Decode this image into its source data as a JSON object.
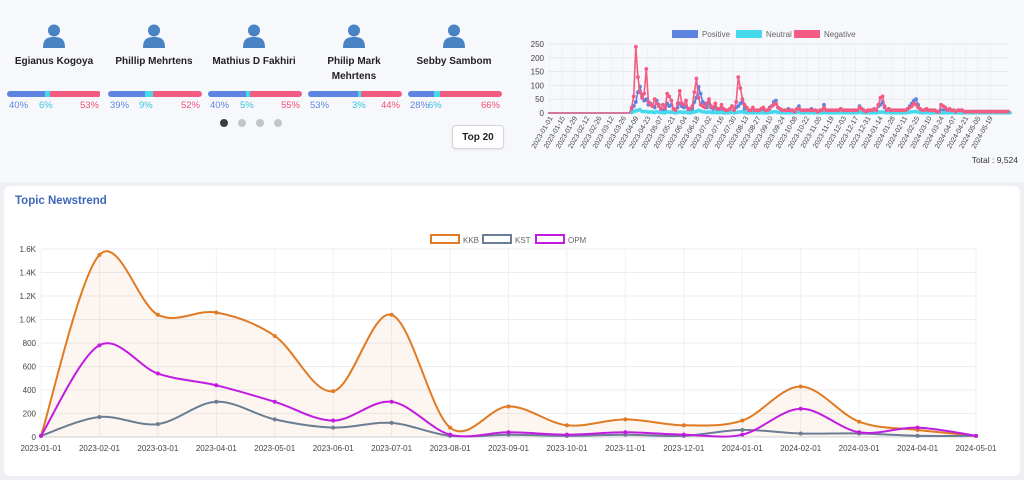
{
  "people": [
    {
      "name": "Egianus Kogoya",
      "pos": 40,
      "neu": 6,
      "neg": 53,
      "pos_label": "40%",
      "neu_label": "6%",
      "neg_label": "53%"
    },
    {
      "name": "Phillip Mehrtens",
      "pos": 39,
      "neu": 9,
      "neg": 52,
      "pos_label": "39%",
      "neu_label": "9%",
      "neg_label": "52%"
    },
    {
      "name": "Mathius D Fakhiri",
      "pos": 40,
      "neu": 5,
      "neg": 55,
      "pos_label": "40%",
      "neu_label": "5%",
      "neg_label": "55%"
    },
    {
      "name": "Philip Mark Mehrtens",
      "pos": 53,
      "neu": 3,
      "neg": 44,
      "pos_label": "53%",
      "neu_label": "3%",
      "neg_label": "44%"
    },
    {
      "name": "Sebby Sambom",
      "pos": 28,
      "neu": 6,
      "neg": 66,
      "pos_label": "28%",
      "neu_label": "6%",
      "neg_label": "66%"
    }
  ],
  "carousel": {
    "pages": 4,
    "active": 0
  },
  "top_button": "Top 20",
  "total_label": "Total : 9,524",
  "topic_title": "Topic Newstrend",
  "colors": {
    "positive": "#5d84e1",
    "neutral": "#46d9ee",
    "negative": "#f45b82",
    "kkb": "#e07b24",
    "kst": "#6b7d95",
    "opm": "#c21be0",
    "title": "#3f68b8"
  },
  "chart_data": [
    {
      "type": "line",
      "legend_position": "top",
      "grid": true,
      "ylim": [
        0,
        250
      ],
      "yticks": [
        0,
        50,
        100,
        150,
        200,
        250
      ],
      "x_tick_labels": [
        "2023-01-01",
        "2023-01-15",
        "2023-01-29",
        "2023-02-12",
        "2023-02-26",
        "2023-03-12",
        "2023-03-26",
        "2023-04-09",
        "2023-04-23",
        "2023-05-07",
        "2023-05-21",
        "2023-06-04",
        "2023-06-18",
        "2023-07-02",
        "2023-07-16",
        "2023-07-30",
        "2023-08-13",
        "2023-08-27",
        "2023-09-10",
        "2023-09-24",
        "2023-10-08",
        "2023-10-22",
        "2023-11-05",
        "2023-11-19",
        "2023-12-03",
        "2023-12-17",
        "2023-12-31",
        "2024-01-14",
        "2024-01-28",
        "2024-02-11",
        "2024-02-25",
        "2024-03-10",
        "2024-03-24",
        "2024-04-07",
        "2024-04-21",
        "2024-05-05",
        "2024-05-19"
      ],
      "series": [
        {
          "name": "Positive",
          "values": [
            0,
            0,
            0,
            0,
            0,
            0,
            0,
            0,
            0,
            0,
            0,
            0,
            0,
            0,
            0,
            0,
            0,
            0,
            0,
            0,
            0,
            0,
            0,
            0,
            0,
            0,
            0,
            0,
            0,
            0,
            0,
            0,
            0,
            0,
            0,
            0,
            0,
            0,
            0,
            0,
            10,
            25,
            40,
            75,
            95,
            60,
            45,
            50,
            30,
            35,
            25,
            20,
            45,
            30,
            15,
            10,
            10,
            35,
            25,
            30,
            15,
            10,
            20,
            35,
            25,
            20,
            25,
            10,
            10,
            15,
            40,
            55,
            95,
            70,
            40,
            35,
            20,
            35,
            20,
            15,
            20,
            10,
            15,
            15,
            10,
            10,
            10,
            15,
            25,
            10,
            20,
            25,
            35,
            40,
            15,
            20,
            10,
            10,
            10,
            5,
            10,
            10,
            15,
            10,
            10,
            10,
            20,
            25,
            40,
            45,
            20,
            15,
            10,
            10,
            10,
            15,
            10,
            10,
            5,
            15,
            25,
            10,
            10,
            10,
            10,
            10,
            15,
            10,
            10,
            5,
            10,
            10,
            30,
            10,
            10,
            10,
            10,
            10,
            10,
            10,
            15,
            10,
            10,
            10,
            10,
            10,
            10,
            10,
            10,
            25,
            15,
            10,
            5,
            10,
            10,
            10,
            15,
            10,
            25,
            30,
            40,
            20,
            10,
            15,
            10,
            10,
            10,
            10,
            10,
            10,
            10,
            10,
            15,
            25,
            35,
            45,
            50,
            30,
            15,
            10,
            10,
            15,
            10,
            10,
            10,
            10,
            5,
            5,
            10,
            10,
            10,
            10,
            15,
            10,
            10,
            5,
            10,
            10,
            10,
            5,
            5,
            5,
            5,
            5,
            5,
            5,
            5,
            5,
            5,
            5,
            5,
            5,
            5,
            5,
            5,
            5,
            5,
            5,
            5,
            5,
            5
          ]
        },
        {
          "name": "Neutral",
          "values": [
            0,
            0,
            0,
            0,
            0,
            0,
            0,
            0,
            0,
            0,
            0,
            0,
            0,
            0,
            0,
            0,
            0,
            0,
            0,
            0,
            0,
            0,
            0,
            0,
            0,
            0,
            0,
            0,
            0,
            0,
            0,
            0,
            0,
            0,
            0,
            0,
            0,
            0,
            0,
            0,
            2,
            5,
            8,
            10,
            12,
            6,
            5,
            6,
            3,
            4,
            3,
            2,
            5,
            3,
            2,
            1,
            1,
            4,
            3,
            3,
            2,
            1,
            2,
            4,
            3,
            2,
            3,
            1,
            1,
            2,
            4,
            6,
            10,
            7,
            4,
            4,
            2,
            4,
            2,
            2,
            2,
            1,
            2,
            2,
            1,
            1,
            1,
            2,
            3,
            1,
            2,
            3,
            4,
            4,
            2,
            2,
            1,
            1,
            1,
            1,
            1,
            1,
            2,
            1,
            1,
            1,
            2,
            3,
            4,
            5,
            2,
            2,
            1,
            1,
            1,
            2,
            1,
            1,
            1,
            2,
            3,
            1,
            1,
            1,
            1,
            1,
            2,
            1,
            1,
            1,
            1,
            1,
            3,
            1,
            1,
            1,
            1,
            1,
            1,
            1,
            2,
            1,
            1,
            1,
            1,
            1,
            1,
            1,
            1,
            3,
            2,
            1,
            1,
            1,
            1,
            1,
            2,
            1,
            3,
            3,
            4,
            2,
            1,
            2,
            1,
            1,
            1,
            1,
            1,
            1,
            1,
            1,
            2,
            3,
            4,
            5,
            5,
            3,
            2,
            1,
            1,
            2,
            1,
            1,
            1,
            1,
            1,
            1,
            1,
            1,
            1,
            1,
            2,
            1,
            1,
            1,
            1,
            1,
            1,
            1,
            1,
            1,
            1,
            1,
            1,
            1,
            1,
            1,
            1,
            1,
            1,
            1,
            1,
            1,
            1,
            1,
            1,
            1,
            1,
            1,
            1,
            1
          ]
        },
        {
          "name": "Negative",
          "values": [
            0,
            0,
            0,
            0,
            0,
            0,
            0,
            0,
            0,
            0,
            0,
            0,
            0,
            0,
            0,
            0,
            0,
            0,
            0,
            0,
            0,
            0,
            0,
            0,
            0,
            0,
            0,
            0,
            0,
            0,
            0,
            0,
            0,
            0,
            0,
            0,
            0,
            0,
            0,
            0,
            20,
            60,
            240,
            130,
            75,
            55,
            70,
            160,
            40,
            30,
            25,
            50,
            35,
            25,
            15,
            30,
            20,
            70,
            60,
            45,
            15,
            10,
            35,
            80,
            35,
            30,
            45,
            15,
            15,
            25,
            75,
            125,
            55,
            30,
            25,
            20,
            35,
            50,
            25,
            20,
            35,
            15,
            15,
            30,
            15,
            10,
            10,
            15,
            25,
            10,
            40,
            130,
            90,
            50,
            30,
            20,
            10,
            10,
            20,
            10,
            10,
            10,
            15,
            20,
            10,
            10,
            15,
            25,
            30,
            35,
            20,
            15,
            10,
            10,
            10,
            10,
            10,
            10,
            5,
            15,
            15,
            10,
            10,
            10,
            10,
            10,
            10,
            10,
            10,
            5,
            10,
            10,
            20,
            10,
            10,
            10,
            10,
            10,
            10,
            10,
            15,
            10,
            10,
            10,
            10,
            10,
            10,
            10,
            10,
            20,
            15,
            10,
            5,
            10,
            10,
            10,
            15,
            10,
            30,
            55,
            60,
            25,
            10,
            15,
            10,
            10,
            10,
            10,
            10,
            10,
            10,
            10,
            15,
            20,
            25,
            35,
            30,
            20,
            15,
            10,
            10,
            15,
            10,
            10,
            10,
            10,
            5,
            5,
            30,
            25,
            20,
            10,
            15,
            10,
            10,
            5,
            10,
            10,
            10,
            5,
            5,
            5,
            5,
            5,
            5,
            5,
            5,
            5,
            5,
            5,
            5,
            5,
            5,
            5,
            5,
            5,
            5,
            5,
            5,
            5,
            5
          ]
        }
      ]
    },
    {
      "type": "area",
      "legend_position": "top",
      "grid": true,
      "ylim": [
        0,
        1600
      ],
      "ytick_labels": [
        "0",
        "200",
        "400",
        "600",
        "800",
        "1.0K",
        "1.2K",
        "1.4K",
        "1.6K"
      ],
      "x": [
        "2023-01-01",
        "2023-02-01",
        "2023-03-01",
        "2023-04-01",
        "2023-05-01",
        "2023-06-01",
        "2023-07-01",
        "2023-08-01",
        "2023-09-01",
        "2023-10-01",
        "2023-11-01",
        "2023-12-01",
        "2024-01-01",
        "2024-02-01",
        "2024-03-01",
        "2024-04-01",
        "2024-05-01"
      ],
      "series": [
        {
          "name": "KKB",
          "values": [
            10,
            1550,
            1040,
            1060,
            860,
            390,
            1040,
            80,
            260,
            100,
            150,
            100,
            140,
            430,
            130,
            60,
            10
          ]
        },
        {
          "name": "KST",
          "values": [
            10,
            170,
            110,
            300,
            150,
            80,
            120,
            10,
            20,
            10,
            20,
            10,
            60,
            30,
            30,
            10,
            10
          ]
        },
        {
          "name": "OPM",
          "values": [
            10,
            780,
            540,
            440,
            300,
            140,
            300,
            20,
            40,
            20,
            40,
            20,
            20,
            240,
            40,
            80,
            10
          ]
        }
      ]
    }
  ]
}
